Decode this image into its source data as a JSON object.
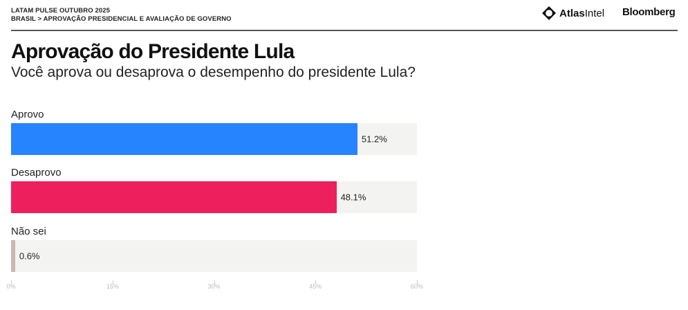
{
  "header": {
    "kicker_line1": "LATAM PULSE OUTUBRO 2025",
    "kicker_line2": "BRASIL > APROVAÇÃO PRESIDENCIAL E AVALIAÇÃO DE GOVERNO",
    "logo_atlas_bold": "Atlas",
    "logo_atlas_light": "Intel",
    "logo_bloomberg": "Bloomberg",
    "atlas_icon": "diamond-ring-icon"
  },
  "chart_data": {
    "type": "bar",
    "orientation": "horizontal",
    "title": "Aprovação do Presidente Lula",
    "subtitle": "Você aprova ou desaprova o desempenho do presidente Lula?",
    "categories": [
      "Aprovo",
      "Desaprovo",
      "Não sei"
    ],
    "values": [
      51.2,
      48.1,
      0.6
    ],
    "value_labels": [
      "51.2%",
      "48.1%",
      "0.6%"
    ],
    "colors": [
      "#2684ff",
      "#ee1f5d",
      "#c9b9b0"
    ],
    "track_color": "#f3f3f1",
    "xlim": [
      0,
      60
    ],
    "ticks": [
      0,
      15,
      30,
      45,
      60
    ],
    "tick_labels": [
      "0%",
      "15%",
      "30%",
      "45%",
      "60%"
    ],
    "xlabel": "",
    "ylabel": "",
    "grid": false,
    "legend": "none"
  }
}
